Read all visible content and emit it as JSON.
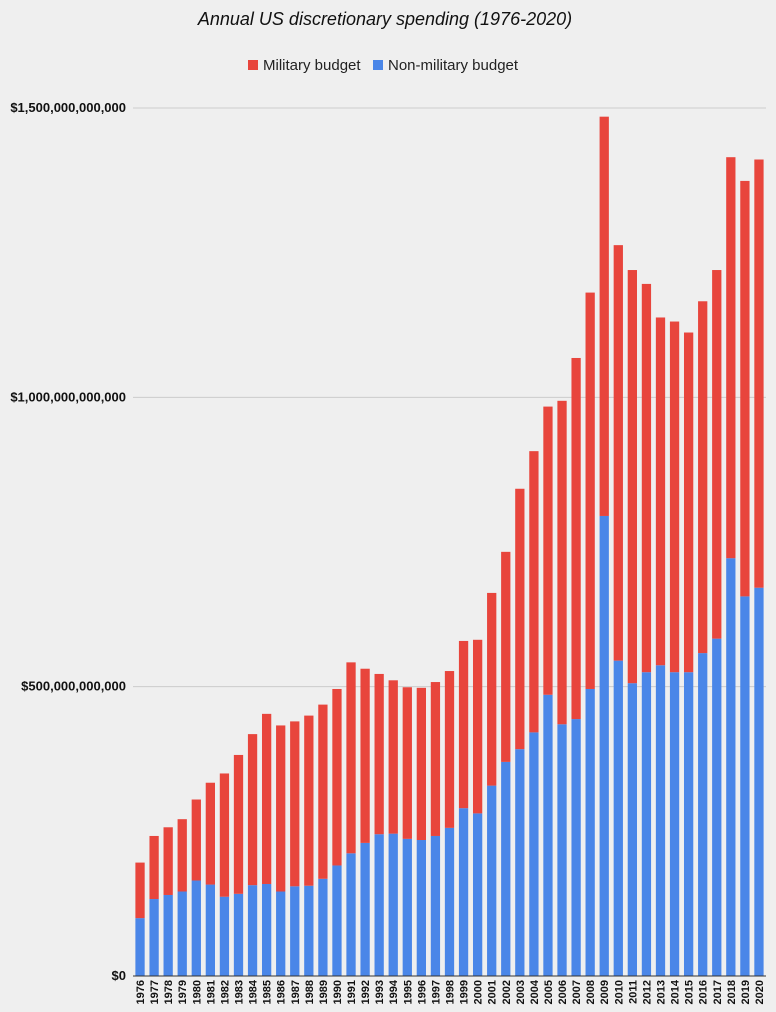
{
  "chart_data": {
    "type": "bar",
    "stacked": true,
    "title": "Annual US discretionary spending (1976-2020)",
    "xlabel": "",
    "ylabel": "",
    "ylim": [
      0,
      1500000000000
    ],
    "y_ticks": [
      0,
      500000000000,
      1000000000000,
      1500000000000
    ],
    "y_tick_labels": [
      "$0",
      "$500,000,000,000",
      "$1,000,000,000,000",
      "$1,500,000,000,000"
    ],
    "grid": true,
    "legend_position": "top-center",
    "categories": [
      "1976",
      "1977",
      "1978",
      "1979",
      "1980",
      "1981",
      "1982",
      "1983",
      "1984",
      "1985",
      "1986",
      "1987",
      "1988",
      "1989",
      "1990",
      "1991",
      "1992",
      "1993",
      "1994",
      "1995",
      "1996",
      "1997",
      "1998",
      "1999",
      "2000",
      "2001",
      "2002",
      "2003",
      "2004",
      "2005",
      "2006",
      "2007",
      "2008",
      "2009",
      "2010",
      "2011",
      "2012",
      "2013",
      "2014",
      "2015",
      "2016",
      "2017",
      "2018",
      "2019",
      "2020"
    ],
    "series": [
      {
        "name": "Non-military budget",
        "color": "#4a86e8",
        "values": [
          100000000000,
          133000000000,
          140000000000,
          146000000000,
          165000000000,
          158000000000,
          137000000000,
          142000000000,
          157000000000,
          159000000000,
          146000000000,
          155000000000,
          156000000000,
          168000000000,
          191000000000,
          212000000000,
          230000000000,
          245000000000,
          246000000000,
          237000000000,
          235000000000,
          242000000000,
          256000000000,
          290000000000,
          281000000000,
          329000000000,
          370000000000,
          392000000000,
          421000000000,
          486000000000,
          435000000000,
          444000000000,
          496000000000,
          795000000000,
          545000000000,
          506000000000,
          525000000000,
          537000000000,
          525000000000,
          525000000000,
          558000000000,
          583000000000,
          722000000000,
          656000000000,
          671000000000
        ]
      },
      {
        "name": "Military budget",
        "color": "#e8453c",
        "values": [
          96000000000,
          109000000000,
          117000000000,
          125000000000,
          140000000000,
          176000000000,
          213000000000,
          240000000000,
          261000000000,
          294000000000,
          287000000000,
          285000000000,
          294000000000,
          301000000000,
          305000000000,
          330000000000,
          301000000000,
          277000000000,
          265000000000,
          262000000000,
          263000000000,
          266000000000,
          271000000000,
          289000000000,
          300000000000,
          333000000000,
          363000000000,
          450000000000,
          486000000000,
          498000000000,
          559000000000,
          624000000000,
          685000000000,
          690000000000,
          718000000000,
          714000000000,
          671000000000,
          601000000000,
          606000000000,
          587000000000,
          608000000000,
          637000000000,
          693000000000,
          718000000000,
          740000000000
        ]
      }
    ]
  }
}
